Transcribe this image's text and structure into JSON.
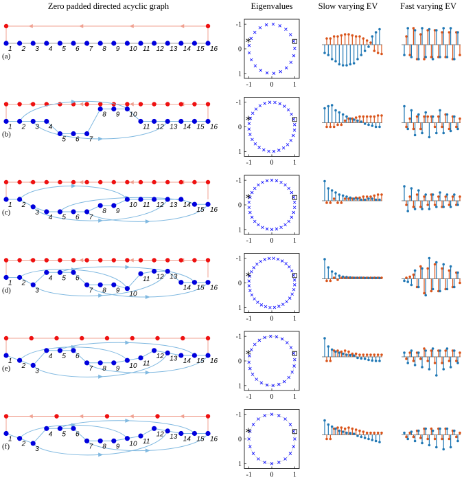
{
  "headers": {
    "graph": "Zero padded directed acyclic graph",
    "eig": "Eigenvalues",
    "slow": "Slow varying EV",
    "fast": "Fast varying EV"
  },
  "nodes": [
    "1",
    "2",
    "3",
    "4",
    "5",
    "6",
    "7",
    "8",
    "9",
    "10",
    "11",
    "12",
    "13",
    "14",
    "15",
    "16"
  ],
  "colors": {
    "graph_node": "#0000dd",
    "pad_node": "#ee1111",
    "pad_edge": "#f0a090",
    "dag_edge": "#7fb8e0",
    "eig_marker": "#0000ff",
    "stem_blue": "#1f77b4",
    "stem_orange": "#d95319"
  },
  "eig_ticks": {
    "x": [
      "-1",
      "0",
      "1"
    ],
    "y": [
      "1",
      "0",
      "-1"
    ]
  },
  "rows": [
    {
      "label": "(a)",
      "tiers": [
        0,
        0,
        0,
        0,
        0,
        0,
        0,
        0,
        0,
        0,
        0,
        0,
        0,
        0,
        0,
        0
      ],
      "pad_count": 2,
      "eig_n": 21,
      "slow": [
        [
          1,
          -0.4,
          0.3
        ],
        [
          2,
          -0.5,
          0.3
        ],
        [
          3,
          -0.7,
          0.4
        ],
        [
          4,
          -0.8,
          0.4
        ],
        [
          5,
          -0.95,
          0.45
        ],
        [
          6,
          -1.0,
          0.5
        ],
        [
          7,
          -1.0,
          0.5
        ],
        [
          8,
          -0.95,
          0.45
        ],
        [
          9,
          -0.9,
          0.4
        ],
        [
          10,
          -0.7,
          0.4
        ],
        [
          11,
          -0.5,
          0.3
        ],
        [
          12,
          -0.3,
          0.2
        ],
        [
          13,
          -0.1,
          0.1
        ],
        [
          14,
          0.4,
          -0.3
        ],
        [
          15,
          0.6,
          -0.4
        ],
        [
          16,
          0.75,
          -0.45
        ]
      ],
      "fast": [
        [
          1,
          -0.5,
          0.4
        ],
        [
          2,
          0.8,
          -0.5
        ],
        [
          3,
          -0.6,
          0.8
        ],
        [
          4,
          0.7,
          -0.7
        ],
        [
          5,
          -0.7,
          0.5
        ],
        [
          6,
          0.8,
          -0.7
        ],
        [
          7,
          -0.6,
          0.7
        ],
        [
          8,
          0.75,
          -0.6
        ],
        [
          9,
          -0.7,
          0.7
        ],
        [
          10,
          0.7,
          -0.6
        ],
        [
          11,
          -0.6,
          0.6
        ],
        [
          12,
          0.8,
          -0.6
        ],
        [
          13,
          -0.6,
          0.6
        ],
        [
          14,
          0.8,
          -0.7
        ],
        [
          15,
          -0.7,
          0.6
        ],
        [
          16,
          0.6,
          -0.5
        ]
      ]
    },
    {
      "label": "(b)",
      "tiers": [
        0,
        0,
        0,
        0,
        1,
        1,
        1,
        -1,
        -1,
        -1,
        0,
        0,
        0,
        0,
        0,
        0
      ],
      "pad_count": 16,
      "eig_n": 28,
      "slow": [
        [
          1,
          0.7,
          -0.2
        ],
        [
          2,
          0.8,
          -0.2
        ],
        [
          3,
          0.85,
          -0.2
        ],
        [
          4,
          0.6,
          -0.1
        ],
        [
          5,
          0.5,
          -0.1
        ],
        [
          6,
          0.4,
          0.1
        ],
        [
          7,
          0.3,
          0.2
        ],
        [
          8,
          0.2,
          0.2
        ],
        [
          9,
          0.15,
          0.25
        ],
        [
          10,
          0.1,
          0.3
        ],
        [
          11,
          0.05,
          0.3
        ],
        [
          12,
          -0.05,
          0.3
        ],
        [
          13,
          -0.1,
          0.3
        ],
        [
          14,
          -0.15,
          0.3
        ],
        [
          15,
          -0.2,
          0.35
        ],
        [
          16,
          -0.2,
          0.35
        ]
      ],
      "fast": [
        [
          1,
          0.8,
          -0.2
        ],
        [
          2,
          -0.3,
          0.2
        ],
        [
          3,
          0.6,
          -0.3
        ],
        [
          4,
          -0.6,
          0.3
        ],
        [
          5,
          0.4,
          -0.3
        ],
        [
          6,
          -0.5,
          0.3
        ],
        [
          7,
          0.5,
          0.3
        ],
        [
          8,
          -0.7,
          0.3
        ],
        [
          9,
          0.3,
          -0.2
        ],
        [
          10,
          -0.5,
          0.3
        ],
        [
          11,
          0.6,
          -0.2
        ],
        [
          12,
          -0.5,
          0.4
        ],
        [
          13,
          0.4,
          -0.3
        ],
        [
          14,
          -0.4,
          0.3
        ],
        [
          15,
          0.3,
          -0.2
        ],
        [
          16,
          -0.3,
          0.2
        ]
      ]
    },
    {
      "label": "(c)",
      "tiers": [
        0,
        0,
        0.6,
        1,
        1,
        1,
        1,
        0.5,
        0.5,
        0,
        0,
        0,
        0,
        0,
        0.4,
        0.4
      ],
      "pad_count": 16,
      "eig_n": 30,
      "slow": [
        [
          1,
          0.95,
          -0.1
        ],
        [
          2,
          0.6,
          -0.1
        ],
        [
          3,
          0.5,
          0.1
        ],
        [
          4,
          0.4,
          -0.1
        ],
        [
          5,
          0.3,
          -0.1
        ],
        [
          6,
          0.25,
          0.1
        ],
        [
          7,
          0.2,
          0.1
        ],
        [
          8,
          0.15,
          0.1
        ],
        [
          9,
          0.1,
          0.15
        ],
        [
          10,
          0.1,
          0.15
        ],
        [
          11,
          0.05,
          0.2
        ],
        [
          12,
          0.05,
          0.2
        ],
        [
          13,
          0.1,
          0.2
        ],
        [
          14,
          0.1,
          0.25
        ],
        [
          15,
          0.05,
          0.3
        ],
        [
          16,
          0.05,
          0.3
        ]
      ],
      "fast": [
        [
          1,
          0.7,
          -0.2
        ],
        [
          2,
          -0.5,
          0.2
        ],
        [
          3,
          0.6,
          -0.3
        ],
        [
          4,
          -0.4,
          0.3
        ],
        [
          5,
          0.5,
          -0.3
        ],
        [
          6,
          -0.4,
          0.2
        ],
        [
          7,
          0.3,
          -0.2
        ],
        [
          8,
          -0.4,
          0.3
        ],
        [
          9,
          0.3,
          -0.2
        ],
        [
          10,
          -0.3,
          0.2
        ],
        [
          11,
          0.4,
          -0.3
        ],
        [
          12,
          -0.3,
          0.2
        ],
        [
          13,
          0.3,
          -0.2
        ],
        [
          14,
          -0.3,
          0.2
        ],
        [
          15,
          0.3,
          -0.2
        ],
        [
          16,
          -0.2,
          0.2
        ]
      ]
    },
    {
      "label": "(d)",
      "tiers": [
        0,
        0,
        0.6,
        -0.4,
        -0.4,
        -0.4,
        0.6,
        0.6,
        0.6,
        0.9,
        -0.3,
        -0.5,
        -0.5,
        0.4,
        0.4,
        0.4
      ],
      "pad_count": 16,
      "eig_n": 32,
      "slow": [
        [
          1,
          0.95,
          -0.1
        ],
        [
          2,
          0.55,
          -0.1
        ],
        [
          3,
          0.35,
          0.05
        ],
        [
          4,
          0.25,
          -0.05
        ],
        [
          5,
          0.15,
          0.05
        ],
        [
          6,
          0.1,
          0.05
        ],
        [
          7,
          0.08,
          0.05
        ],
        [
          8,
          0.06,
          0.05
        ],
        [
          9,
          0.05,
          0.05
        ],
        [
          10,
          0.05,
          0.05
        ],
        [
          11,
          0.05,
          0.05
        ],
        [
          12,
          0.04,
          0.05
        ],
        [
          13,
          0.04,
          0.05
        ],
        [
          14,
          0.04,
          0.05
        ],
        [
          15,
          0.04,
          0.05
        ],
        [
          16,
          0.04,
          0.05
        ]
      ],
      "fast": [
        [
          1,
          -0.1,
          0.05
        ],
        [
          2,
          -0.15,
          0.1
        ],
        [
          3,
          -0.3,
          0.2
        ],
        [
          4,
          0.4,
          -0.4
        ],
        [
          5,
          -0.4,
          0.6
        ],
        [
          6,
          0.5,
          -0.7
        ],
        [
          7,
          -0.8,
          0.5
        ],
        [
          8,
          1.0,
          -0.6
        ],
        [
          9,
          -0.5,
          0.7
        ],
        [
          10,
          0.8,
          -0.6
        ],
        [
          11,
          -0.6,
          0.5
        ],
        [
          12,
          0.7,
          -0.5
        ],
        [
          13,
          -0.5,
          0.4
        ],
        [
          14,
          0.6,
          -0.4
        ],
        [
          15,
          -0.4,
          0.3
        ],
        [
          16,
          0.3,
          -0.2
        ]
      ]
    },
    {
      "label": "(e)",
      "tiers": [
        0,
        0.4,
        0.8,
        -0.4,
        -0.4,
        -0.4,
        0.6,
        0.6,
        0.6,
        0.4,
        0.2,
        -0.4,
        -0.2,
        0,
        0,
        0
      ],
      "pad_count": 9,
      "eig_n": 24,
      "slow": [
        [
          1,
          0.9,
          -0.2
        ],
        [
          2,
          0.5,
          -0.2
        ],
        [
          3,
          0.35,
          0.3
        ],
        [
          4,
          0.25,
          0.3
        ],
        [
          5,
          0.2,
          0.25
        ],
        [
          6,
          0.15,
          0.3
        ],
        [
          7,
          0.1,
          0.25
        ],
        [
          8,
          0.08,
          0.15
        ],
        [
          9,
          0.06,
          0.15
        ],
        [
          10,
          -0.05,
          0.1
        ],
        [
          11,
          -0.08,
          0.1
        ],
        [
          12,
          -0.1,
          0.1
        ],
        [
          13,
          -0.15,
          0.1
        ],
        [
          14,
          -0.18,
          0.1
        ],
        [
          15,
          -0.2,
          0.1
        ],
        [
          16,
          -0.2,
          0.1
        ]
      ],
      "fast": [
        [
          1,
          0.2,
          -0.1
        ],
        [
          2,
          -0.3,
          0.2
        ],
        [
          3,
          0.3,
          -0.2
        ],
        [
          4,
          -0.4,
          0.2
        ],
        [
          5,
          0.2,
          -0.1
        ],
        [
          6,
          -0.5,
          0.4
        ],
        [
          7,
          0.3,
          -0.2
        ],
        [
          8,
          -0.6,
          0.3
        ],
        [
          9,
          0.4,
          -0.3
        ],
        [
          10,
          -0.9,
          0.3
        ],
        [
          11,
          0.3,
          -0.3
        ],
        [
          12,
          -0.6,
          0.3
        ],
        [
          13,
          0.4,
          -0.2
        ],
        [
          14,
          -0.5,
          0.3
        ],
        [
          15,
          0.3,
          -0.2
        ],
        [
          16,
          -0.3,
          0.2
        ]
      ]
    },
    {
      "label": "(f)",
      "tiers": [
        0,
        0.4,
        0.8,
        -0.4,
        -0.4,
        -0.4,
        0.6,
        0.6,
        0.6,
        0.4,
        0.2,
        -0.4,
        -0.2,
        0,
        0,
        0
      ],
      "pad_count": 5,
      "eig_n": 20,
      "slow": [
        [
          1,
          0.7,
          -0.2
        ],
        [
          2,
          0.5,
          -0.2
        ],
        [
          3,
          0.4,
          0.3
        ],
        [
          4,
          0.3,
          0.35
        ],
        [
          5,
          0.2,
          0.35
        ],
        [
          6,
          0.15,
          0.3
        ],
        [
          7,
          0.1,
          0.35
        ],
        [
          8,
          0.08,
          0.3
        ],
        [
          9,
          0.05,
          0.25
        ],
        [
          10,
          -0.05,
          0.2
        ],
        [
          11,
          -0.1,
          0.15
        ],
        [
          12,
          -0.15,
          0.1
        ],
        [
          13,
          -0.2,
          0.1
        ],
        [
          14,
          -0.25,
          0.1
        ],
        [
          15,
          -0.3,
          0.1
        ],
        [
          16,
          -0.35,
          0.1
        ]
      ],
      "fast": [
        [
          1,
          0.1,
          -0.1
        ],
        [
          2,
          -0.2,
          0.1
        ],
        [
          3,
          0.15,
          -0.1
        ],
        [
          4,
          -0.3,
          0.2
        ],
        [
          5,
          0.2,
          -0.15
        ],
        [
          6,
          -0.4,
          0.3
        ],
        [
          7,
          0.3,
          -0.2
        ],
        [
          8,
          -0.5,
          0.3
        ],
        [
          9,
          0.2,
          -0.2
        ],
        [
          10,
          -0.6,
          0.3
        ],
        [
          11,
          0.3,
          -0.2
        ],
        [
          12,
          -0.7,
          0.3
        ],
        [
          13,
          0.3,
          -0.2
        ],
        [
          14,
          -0.6,
          0.2
        ],
        [
          15,
          0.2,
          -0.1
        ],
        [
          16,
          -0.3,
          0.1
        ]
      ]
    }
  ]
}
